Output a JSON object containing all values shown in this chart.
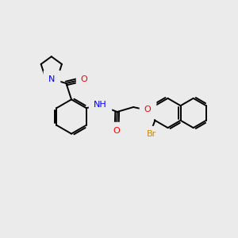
{
  "bg_color": "#ebebeb",
  "bond_color": "#000000",
  "bond_width": 1.4,
  "atom_colors": {
    "N": "#0000ff",
    "O": "#ff0000",
    "Br": "#cc8800",
    "H": "#555555",
    "C": "#000000"
  },
  "font_size": 7.5
}
